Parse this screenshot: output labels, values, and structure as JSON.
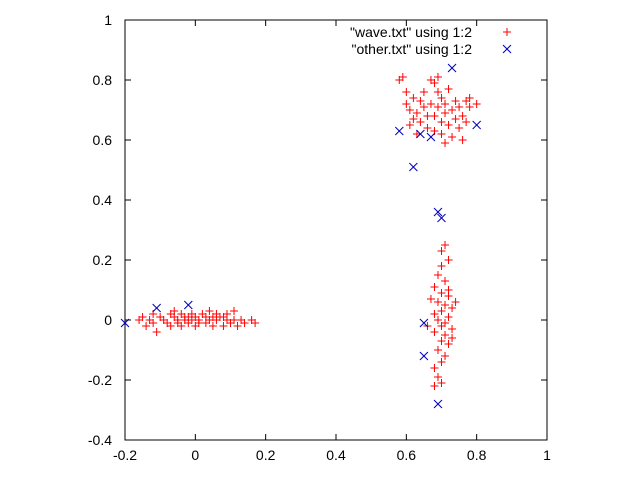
{
  "chart_data": {
    "type": "scatter",
    "title": "",
    "xlabel": "",
    "ylabel": "",
    "xlim": [
      -0.2,
      1
    ],
    "ylim": [
      -0.4,
      1
    ],
    "xticks": [
      "-0.2",
      "0",
      "0.2",
      "0.4",
      "0.6",
      "0.8",
      "1"
    ],
    "yticks": [
      "-0.4",
      "-0.2",
      "0",
      "0.2",
      "0.4",
      "0.6",
      "0.8",
      "1"
    ],
    "grid": false,
    "legend": "top-right",
    "series": [
      {
        "name": "\"wave.txt\" using 1:2",
        "marker": "plus",
        "color": "#ff0000",
        "points": [
          [
            -0.16,
            0.0
          ],
          [
            -0.15,
            0.01
          ],
          [
            -0.14,
            -0.02
          ],
          [
            -0.13,
            0.0
          ],
          [
            -0.12,
            0.02
          ],
          [
            -0.12,
            -0.01
          ],
          [
            -0.11,
            -0.04
          ],
          [
            -0.1,
            0.01
          ],
          [
            -0.09,
            0.0
          ],
          [
            -0.08,
            -0.01
          ],
          [
            -0.07,
            0.02
          ],
          [
            -0.07,
            -0.02
          ],
          [
            -0.06,
            0.01
          ],
          [
            -0.06,
            0.03
          ],
          [
            -0.05,
            -0.01
          ],
          [
            -0.05,
            0.0
          ],
          [
            -0.04,
            0.02
          ],
          [
            -0.04,
            -0.02
          ],
          [
            -0.03,
            0.0
          ],
          [
            -0.03,
            0.01
          ],
          [
            -0.02,
            -0.01
          ],
          [
            -0.02,
            0.01
          ],
          [
            -0.01,
            0.0
          ],
          [
            0.0,
            -0.02
          ],
          [
            0.0,
            0.01
          ],
          [
            0.01,
            0.0
          ],
          [
            0.01,
            -0.01
          ],
          [
            0.02,
            0.02
          ],
          [
            0.03,
            -0.01
          ],
          [
            0.03,
            0.01
          ],
          [
            0.04,
            0.0
          ],
          [
            0.04,
            0.03
          ],
          [
            0.05,
            -0.02
          ],
          [
            0.05,
            0.01
          ],
          [
            0.06,
            0.0
          ],
          [
            0.06,
            0.02
          ],
          [
            0.07,
            0.01
          ],
          [
            0.08,
            -0.02
          ],
          [
            0.09,
            0.0
          ],
          [
            0.09,
            0.02
          ],
          [
            0.1,
            -0.01
          ],
          [
            0.11,
            0.03
          ],
          [
            0.11,
            0.0
          ],
          [
            0.12,
            -0.02
          ],
          [
            0.13,
            0.0
          ],
          [
            0.14,
            -0.01
          ],
          [
            0.16,
            0.0
          ],
          [
            0.17,
            -0.01
          ],
          [
            0.08,
            0.01
          ],
          [
            -0.01,
            0.02
          ],
          [
            0.58,
            0.8
          ],
          [
            0.59,
            0.81
          ],
          [
            0.6,
            0.76
          ],
          [
            0.6,
            0.72
          ],
          [
            0.61,
            0.7
          ],
          [
            0.61,
            0.65
          ],
          [
            0.62,
            0.67
          ],
          [
            0.62,
            0.74
          ],
          [
            0.63,
            0.69
          ],
          [
            0.63,
            0.62
          ],
          [
            0.64,
            0.73
          ],
          [
            0.64,
            0.66
          ],
          [
            0.65,
            0.71
          ],
          [
            0.65,
            0.76
          ],
          [
            0.66,
            0.64
          ],
          [
            0.66,
            0.68
          ],
          [
            0.67,
            0.8
          ],
          [
            0.67,
            0.72
          ],
          [
            0.68,
            0.79
          ],
          [
            0.68,
            0.68
          ],
          [
            0.68,
            0.63
          ],
          [
            0.69,
            0.71
          ],
          [
            0.69,
            0.76
          ],
          [
            0.7,
            0.74
          ],
          [
            0.7,
            0.66
          ],
          [
            0.7,
            0.62
          ],
          [
            0.71,
            0.69
          ],
          [
            0.71,
            0.72
          ],
          [
            0.72,
            0.77
          ],
          [
            0.72,
            0.65
          ],
          [
            0.73,
            0.7
          ],
          [
            0.73,
            0.61
          ],
          [
            0.74,
            0.73
          ],
          [
            0.74,
            0.67
          ],
          [
            0.75,
            0.71
          ],
          [
            0.75,
            0.64
          ],
          [
            0.76,
            0.6
          ],
          [
            0.76,
            0.68
          ],
          [
            0.77,
            0.73
          ],
          [
            0.77,
            0.66
          ],
          [
            0.78,
            0.71
          ],
          [
            0.78,
            0.74
          ],
          [
            0.8,
            0.72
          ],
          [
            0.69,
            0.81
          ],
          [
            0.71,
            0.59
          ],
          [
            0.7,
            0.23
          ],
          [
            0.71,
            0.25
          ],
          [
            0.72,
            0.2
          ],
          [
            0.7,
            0.18
          ],
          [
            0.69,
            0.15
          ],
          [
            0.71,
            0.13
          ],
          [
            0.68,
            0.11
          ],
          [
            0.7,
            0.09
          ],
          [
            0.72,
            0.08
          ],
          [
            0.69,
            0.06
          ],
          [
            0.71,
            0.05
          ],
          [
            0.73,
            0.04
          ],
          [
            0.7,
            0.03
          ],
          [
            0.68,
            0.02
          ],
          [
            0.72,
            0.01
          ],
          [
            0.69,
            0.0
          ],
          [
            0.71,
            -0.01
          ],
          [
            0.7,
            -0.02
          ],
          [
            0.73,
            -0.03
          ],
          [
            0.68,
            -0.04
          ],
          [
            0.71,
            -0.05
          ],
          [
            0.7,
            -0.07
          ],
          [
            0.72,
            -0.08
          ],
          [
            0.69,
            -0.1
          ],
          [
            0.71,
            -0.12
          ],
          [
            0.7,
            -0.14
          ],
          [
            0.68,
            -0.16
          ],
          [
            0.69,
            -0.19
          ],
          [
            0.7,
            -0.21
          ],
          [
            0.68,
            -0.22
          ],
          [
            0.72,
            0.1
          ],
          [
            0.67,
            0.07
          ],
          [
            0.74,
            0.06
          ],
          [
            0.73,
            -0.06
          ],
          [
            0.66,
            -0.02
          ]
        ]
      },
      {
        "name": "\"other.txt\" using 1:2",
        "marker": "cross",
        "color": "#0000bb",
        "points": [
          [
            -0.2,
            -0.01
          ],
          [
            -0.11,
            0.04
          ],
          [
            -0.02,
            0.05
          ],
          [
            0.58,
            0.63
          ],
          [
            0.62,
            0.51
          ],
          [
            0.64,
            0.62
          ],
          [
            0.67,
            0.61
          ],
          [
            0.73,
            0.84
          ],
          [
            0.8,
            0.65
          ],
          [
            0.69,
            0.36
          ],
          [
            0.7,
            0.34
          ],
          [
            0.65,
            -0.01
          ],
          [
            0.65,
            -0.12
          ],
          [
            0.69,
            -0.28
          ]
        ]
      }
    ]
  }
}
